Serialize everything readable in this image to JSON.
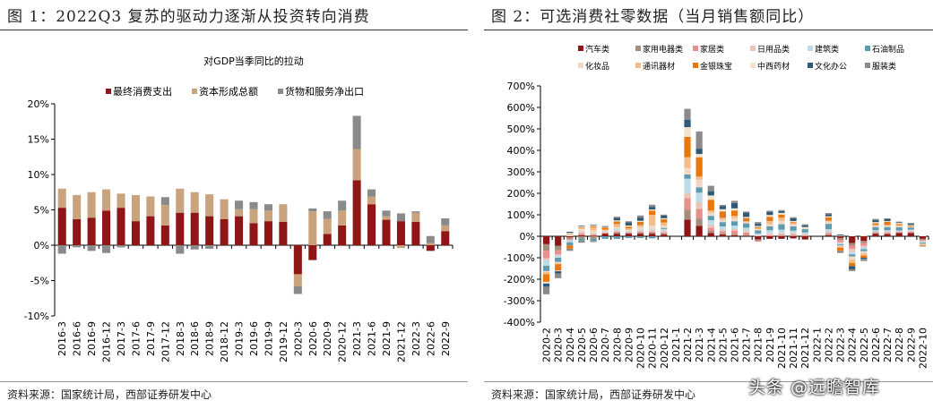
{
  "left": {
    "heading": "图 1：2022Q3 复苏的驱动力逐渐从投资转向消费",
    "source": "资料来源：国家统计局，西部证券研发中心"
  },
  "right": {
    "heading": "图 2：可选消费社零数据（当月销售额同比）",
    "source": "资料来源：国家统计局，西部证券研发中心"
  },
  "watermark": "头条 @远瞻智库",
  "chart_data": [
    {
      "type": "bar",
      "stacked": true,
      "title": "对GDP当季同比的拉动",
      "ylim": [
        -10,
        20
      ],
      "yticks": [
        -10,
        -5,
        0,
        5,
        10,
        15,
        20
      ],
      "yunit": "%",
      "legend": "top",
      "categories": [
        "2016-3",
        "2016-6",
        "2016-9",
        "2016-12",
        "2017-3",
        "2017-6",
        "2017-9",
        "2017-12",
        "2018-3",
        "2018-6",
        "2018-9",
        "2018-12",
        "2019-3",
        "2019-6",
        "2019-9",
        "2019-12",
        "2020-3",
        "2020-6",
        "2020-9",
        "2020-12",
        "2021-3",
        "2021-6",
        "2021-9",
        "2021-12",
        "2022-3",
        "2022-6",
        "2022-9"
      ],
      "series": [
        {
          "name": "最终消费支出",
          "color": "#8E1616",
          "values": [
            5.3,
            3.7,
            3.9,
            4.9,
            5.3,
            3.4,
            4.1,
            2.8,
            4.6,
            4.6,
            4.1,
            3.7,
            4.1,
            3.1,
            3.4,
            3.3,
            -4.1,
            -2.1,
            1.6,
            2.8,
            9.2,
            5.8,
            3.6,
            3.4,
            3.3,
            -0.8,
            2.0
          ]
        },
        {
          "name": "资本形成总额",
          "color": "#C9A27E",
          "values": [
            2.7,
            3.4,
            3.6,
            3.0,
            2.0,
            3.7,
            2.8,
            2.9,
            3.4,
            2.9,
            3.1,
            2.8,
            1.0,
            2.0,
            1.5,
            2.5,
            -1.7,
            4.8,
            2.1,
            2.1,
            4.4,
            1.1,
            0.5,
            -0.4,
            1.3,
            0.3,
            0.8
          ]
        },
        {
          "name": "货物和服务净出口",
          "color": "#8A8A8A",
          "values": [
            -1.2,
            -0.3,
            -0.8,
            -1.1,
            -0.3,
            0,
            0,
            1.1,
            -1.2,
            -0.6,
            -0.5,
            0,
            1.2,
            1.0,
            0.9,
            0,
            -1.1,
            0.4,
            1.1,
            1.4,
            4.7,
            1.0,
            0.8,
            1.1,
            0.2,
            1.0,
            1.0
          ]
        }
      ]
    },
    {
      "type": "bar",
      "stacked": true,
      "title": "",
      "ylim": [
        -400,
        700
      ],
      "yticks": [
        -400,
        -300,
        -200,
        -100,
        0,
        100,
        200,
        300,
        400,
        500,
        600,
        700
      ],
      "yunit": "%",
      "legend": "top",
      "categories": [
        "2020-2",
        "2020-3",
        "2020-4",
        "2020-5",
        "2020-6",
        "2020-7",
        "2020-8",
        "2020-9",
        "2020-10",
        "2020-11",
        "2020-12",
        "2021-1",
        "2021-2",
        "2021-3",
        "2021-4",
        "2021-5",
        "2021-6",
        "2021-7",
        "2021-8",
        "2021-9",
        "2021-10",
        "2021-11",
        "2021-12",
        "2022-1",
        "2022-2",
        "2022-3",
        "2022-4",
        "2022-5",
        "2022-6",
        "2022-7",
        "2022-8",
        "2022-9",
        "2022-10"
      ],
      "series": [
        {
          "name": "汽车类",
          "color": "#8E1616",
          "values": [
            -37,
            -45,
            -5,
            5,
            3,
            12,
            12,
            12,
            12,
            12,
            8,
            null,
            78,
            48,
            15,
            8,
            5,
            2,
            -15,
            -12,
            -12,
            -10,
            -15,
            null,
            5,
            -8,
            -32,
            -22,
            12,
            10,
            15,
            15,
            -12
          ]
        },
        {
          "name": "家用电器类",
          "color": "#A58C7C",
          "values": [
            -30,
            -20,
            -8,
            -10,
            -12,
            2,
            5,
            3,
            5,
            5,
            5,
            null,
            45,
            35,
            10,
            5,
            5,
            5,
            -5,
            0,
            3,
            3,
            0,
            null,
            5,
            -10,
            -12,
            -10,
            3,
            3,
            3,
            3,
            -5
          ]
        },
        {
          "name": "家居类",
          "color": "#E8908C",
          "values": [
            -35,
            -20,
            -5,
            8,
            5,
            3,
            5,
            3,
            5,
            5,
            5,
            null,
            55,
            45,
            15,
            10,
            15,
            10,
            -5,
            5,
            5,
            5,
            5,
            null,
            5,
            -10,
            -15,
            -12,
            5,
            5,
            3,
            3,
            -5
          ]
        },
        {
          "name": "日用品类",
          "color": "#EBC4BC",
          "values": [
            -10,
            -5,
            3,
            8,
            5,
            3,
            5,
            3,
            5,
            8,
            8,
            null,
            25,
            30,
            15,
            8,
            10,
            8,
            5,
            8,
            8,
            8,
            5,
            null,
            8,
            -5,
            -15,
            -8,
            3,
            5,
            3,
            5,
            -3
          ]
        },
        {
          "name": "建筑类",
          "color": "#BCDDE8",
          "values": [
            -25,
            -10,
            -10,
            3,
            3,
            3,
            5,
            3,
            5,
            5,
            8,
            null,
            65,
            45,
            20,
            15,
            15,
            15,
            8,
            15,
            15,
            10,
            8,
            null,
            10,
            -5,
            -10,
            -8,
            5,
            5,
            3,
            5,
            -5
          ]
        },
        {
          "name": "石油制品",
          "color": "#5E9BAE",
          "values": [
            -25,
            -20,
            -15,
            -10,
            -10,
            -12,
            -12,
            -8,
            -8,
            -10,
            5,
            null,
            20,
            25,
            20,
            20,
            20,
            20,
            15,
            18,
            25,
            20,
            15,
            null,
            25,
            -5,
            -10,
            -10,
            15,
            15,
            15,
            10,
            -5
          ]
        },
        {
          "name": "化妆品",
          "color": "#F0DAC6",
          "values": [
            -5,
            -5,
            5,
            10,
            10,
            3,
            10,
            5,
            10,
            15,
            10,
            null,
            30,
            35,
            15,
            10,
            15,
            5,
            5,
            10,
            15,
            10,
            5,
            null,
            10,
            -5,
            -15,
            -10,
            5,
            5,
            5,
            3,
            -3
          ]
        },
        {
          "name": "通讯器材",
          "color": "#F4BC88",
          "values": [
            -10,
            -5,
            5,
            5,
            15,
            5,
            15,
            8,
            10,
            50,
            15,
            null,
            50,
            15,
            10,
            10,
            10,
            5,
            5,
            15,
            15,
            5,
            0,
            null,
            5,
            -5,
            -15,
            -10,
            5,
            5,
            5,
            3,
            -5
          ]
        },
        {
          "name": "金银珠宝",
          "color": "#E8780E",
          "values": [
            -35,
            -30,
            -15,
            3,
            5,
            10,
            12,
            8,
            15,
            20,
            15,
            null,
            95,
            90,
            50,
            30,
            25,
            15,
            5,
            20,
            15,
            5,
            0,
            null,
            15,
            -15,
            -15,
            -10,
            8,
            15,
            5,
            3,
            -3
          ]
        },
        {
          "name": "中西药材",
          "color": "#F2E4CE",
          "values": [
            -8,
            -3,
            3,
            5,
            5,
            3,
            5,
            5,
            5,
            5,
            5,
            null,
            45,
            15,
            20,
            10,
            10,
            5,
            5,
            8,
            8,
            5,
            5,
            null,
            5,
            3,
            3,
            5,
            5,
            3,
            5,
            3,
            2
          ]
        },
        {
          "name": "文化办公",
          "color": "#2E5A78",
          "values": [
            -15,
            -10,
            5,
            3,
            3,
            2,
            12,
            15,
            15,
            12,
            12,
            null,
            35,
            25,
            20,
            15,
            25,
            20,
            10,
            15,
            8,
            13,
            8,
            null,
            10,
            5,
            -15,
            -5,
            10,
            10,
            3,
            6,
            0
          ]
        },
        {
          "name": "服装类",
          "color": "#8A8A8A",
          "values": [
            -35,
            -22,
            -10,
            -10,
            -5,
            2,
            5,
            5,
            10,
            10,
            5,
            null,
            50,
            80,
            25,
            5,
            10,
            5,
            8,
            5,
            5,
            5,
            5,
            null,
            5,
            -10,
            -8,
            -10,
            5,
            2,
            3,
            3,
            -2
          ]
        }
      ]
    }
  ]
}
